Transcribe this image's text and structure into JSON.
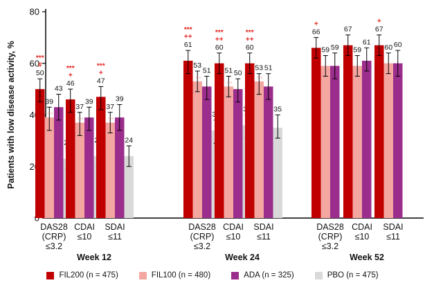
{
  "chart_data": {
    "type": "bar",
    "ylabel": "Patients with low disease activity, %",
    "ylim": [
      0,
      80
    ],
    "yticks": [
      0,
      20,
      40,
      60,
      80
    ],
    "grid": false,
    "legend_position": "bottom",
    "groups": [
      {
        "label": "Week 12",
        "categories": [
          {
            "label": [
              "DAS28",
              "(CRP)",
              "≤3.2"
            ],
            "values": [
              50,
              39,
              43,
              23
            ],
            "ci": [
              [
                45,
                54
              ],
              [
                34,
                43
              ],
              [
                38,
                48
              ],
              [
                19,
                27
              ]
            ],
            "sig": [
              "***",
              "#"
            ]
          },
          {
            "label": [
              "CDAI",
              "≤10"
            ],
            "values": [
              46,
              37,
              39,
              24
            ],
            "ci": [
              [
                41,
                50
              ],
              [
                32,
                41
              ],
              [
                34,
                43
              ],
              [
                20,
                28
              ]
            ],
            "sig": [
              "***",
              "+"
            ]
          },
          {
            "label": [
              "SDAI",
              "≤11"
            ],
            "values": [
              47,
              37,
              39,
              24
            ],
            "ci": [
              [
                42,
                51
              ],
              [
                33,
                41
              ],
              [
                34,
                44
              ],
              [
                20,
                28
              ]
            ],
            "sig": [
              "***",
              "+"
            ]
          }
        ]
      },
      {
        "label": "Week 24",
        "categories": [
          {
            "label": [
              "DAS28",
              "(CRP)",
              "≤3.2"
            ],
            "values": [
              61,
              53,
              51,
              34
            ],
            "ci": [
              [
                56,
                65
              ],
              [
                49,
                57
              ],
              [
                46,
                55
              ],
              [
                29,
                38
              ]
            ],
            "sig": [
              "***",
              "++"
            ]
          },
          {
            "label": [
              "CDAI",
              "≤10"
            ],
            "values": [
              60,
              51,
              50,
              36
            ],
            "ci": [
              [
                56,
                64
              ],
              [
                47,
                55
              ],
              [
                45,
                54
              ],
              [
                31,
                40
              ]
            ],
            "sig": [
              "***",
              "++"
            ]
          },
          {
            "label": [
              "SDAI",
              "≤11"
            ],
            "values": [
              60,
              53,
              51,
              35
            ],
            "ci": [
              [
                56,
                64
              ],
              [
                48,
                56
              ],
              [
                46,
                56
              ],
              [
                31,
                40
              ]
            ],
            "sig": [
              "***",
              "++"
            ]
          }
        ]
      },
      {
        "label": "Week 52",
        "categories": [
          {
            "label": [
              "DAS28",
              "(CRP)",
              "≤3.2"
            ],
            "values": [
              66,
              59,
              59
            ],
            "ci": [
              [
                62,
                70
              ],
              [
                55,
                63
              ],
              [
                54,
                64
              ]
            ],
            "sig": [
              "+"
            ]
          },
          {
            "label": [
              "CDAI",
              "≤10"
            ],
            "values": [
              67,
              59,
              61
            ],
            "ci": [
              [
                63,
                71
              ],
              [
                55,
                63
              ],
              [
                57,
                66
              ]
            ],
            "sig": []
          },
          {
            "label": [
              "SDAI",
              "≤11"
            ],
            "values": [
              67,
              60,
              60
            ],
            "ci": [
              [
                63,
                71
              ],
              [
                56,
                64
              ],
              [
                55,
                65
              ]
            ],
            "sig": [
              "+"
            ]
          }
        ]
      }
    ],
    "fil100_marker": "***",
    "series": [
      {
        "name": "FIL200 (n = 475)",
        "color": "#c00000"
      },
      {
        "name": "FIL100 (n = 480)",
        "color": "#f4a6a0"
      },
      {
        "name": "ADA (n = 325)",
        "color": "#9b2d8c"
      },
      {
        "name": "PBO (n = 475)",
        "color": "#d9d9d9"
      }
    ],
    "sig_color": "#e0201c"
  }
}
